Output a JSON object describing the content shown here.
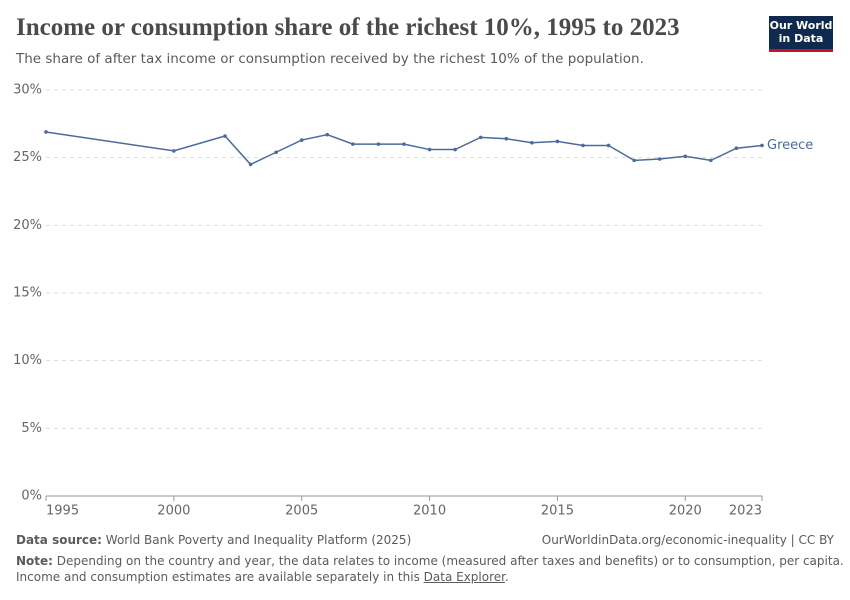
{
  "logo": [
    "Our World",
    "in Data"
  ],
  "chart_data": {
    "type": "line",
    "title": "Income or consumption share of the richest 10%, 1995 to 2023",
    "subtitle": "The share of after tax income or consumption received by the richest 10% of the population.",
    "x": [
      1995,
      2000,
      2002,
      2003,
      2004,
      2005,
      2006,
      2007,
      2008,
      2009,
      2010,
      2011,
      2012,
      2013,
      2014,
      2015,
      2016,
      2017,
      2018,
      2019,
      2020,
      2021,
      2022,
      2023
    ],
    "series": [
      {
        "name": "Greece",
        "color": "#4c6a9c",
        "values": [
          26.9,
          25.5,
          26.6,
          24.5,
          25.4,
          26.3,
          26.7,
          26.0,
          26.0,
          26.0,
          25.6,
          25.6,
          26.5,
          26.4,
          26.1,
          26.2,
          25.9,
          25.9,
          24.8,
          24.9,
          25.1,
          24.8,
          25.7,
          25.9
        ]
      }
    ],
    "xlim": [
      1995,
      2023
    ],
    "xticks": [
      1995,
      2000,
      2005,
      2010,
      2015,
      2020,
      2023
    ],
    "ylim": [
      0,
      30
    ],
    "yticks": [
      {
        "value": 0,
        "label": "0%"
      },
      {
        "value": 5,
        "label": "5%"
      },
      {
        "value": 10,
        "label": "10%"
      },
      {
        "value": 15,
        "label": "15%"
      },
      {
        "value": 20,
        "label": "20%"
      },
      {
        "value": 25,
        "label": "25%"
      },
      {
        "value": 30,
        "label": "30%"
      }
    ],
    "grid": true,
    "source_label": "Data source:",
    "source": "World Bank Poverty and Inequality Platform (2025)",
    "url": "OurWorldinData.org/economic-inequality | CC BY",
    "note_label": "Note:",
    "note": [
      "Depending on the country and year, the data relates to income (measured after taxes and benefits) or to consumption, per capita.",
      "Income and consumption estimates are available separately in this ",
      "Data Explorer",
      "."
    ]
  }
}
